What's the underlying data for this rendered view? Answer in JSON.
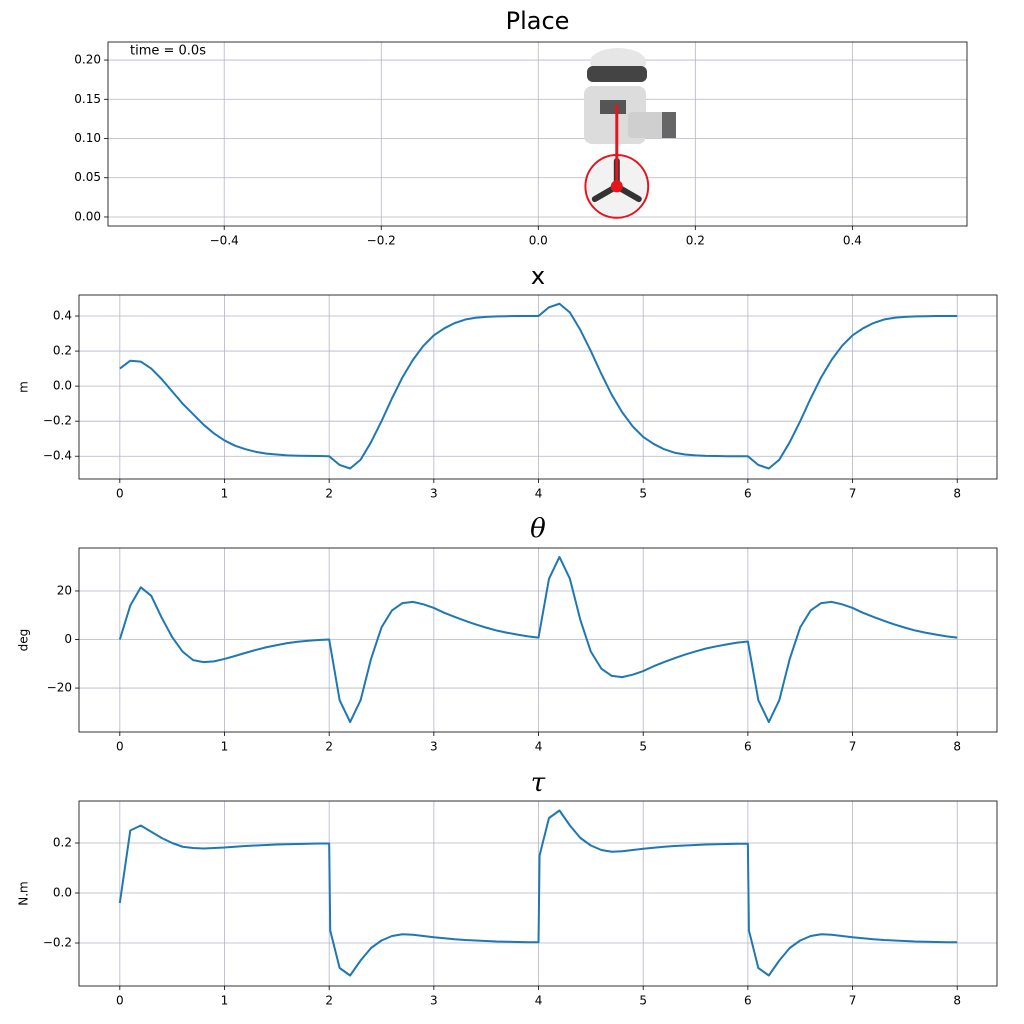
{
  "chart_data": [
    {
      "type": "scene",
      "title": "Place",
      "annotation": "time = 0.0s",
      "xlim": [
        -0.548,
        0.546
      ],
      "ylim": [
        -0.0115,
        0.223
      ],
      "xticks": [
        {
          "value": -0.4,
          "label": "−0.4"
        },
        {
          "value": -0.2,
          "label": "−0.2"
        },
        {
          "value": 0,
          "label": "0.0"
        },
        {
          "value": 0.2,
          "label": "0.2"
        },
        {
          "value": 0.4,
          "label": "0.4"
        }
      ],
      "yticks": [
        {
          "value": 0,
          "label": "0.00"
        },
        {
          "value": 0.05,
          "label": "0.05"
        },
        {
          "value": 0.1,
          "label": "0.10"
        },
        {
          "value": 0.15,
          "label": "0.15"
        },
        {
          "value": 0.2,
          "label": "0.20"
        }
      ],
      "grid": true,
      "color": "#e8141c",
      "wheel": {
        "x": 0.1,
        "y": 0.039,
        "radius": 0.04
      },
      "pole_top": {
        "x": 0.1,
        "y": 0.143
      }
    },
    {
      "type": "line",
      "title": "x",
      "ylabel": "m",
      "xlim": [
        -0.39,
        8.38
      ],
      "ylim": [
        -0.53,
        0.52
      ],
      "xticks": [
        0,
        1,
        2,
        3,
        4,
        5,
        6,
        7,
        8
      ],
      "yticks": [
        {
          "value": -0.4,
          "label": "−0.4"
        },
        {
          "value": -0.2,
          "label": "−0.2"
        },
        {
          "value": 0,
          "label": "0.0"
        },
        {
          "value": 0.2,
          "label": "0.2"
        },
        {
          "value": 0.4,
          "label": "0.4"
        }
      ],
      "grid": true,
      "x": [
        0,
        0.1,
        0.2,
        0.3,
        0.4,
        0.5,
        0.6,
        0.7,
        0.8,
        0.9,
        1.0,
        1.1,
        1.2,
        1.3,
        1.4,
        1.5,
        1.6,
        1.7,
        1.8,
        1.9,
        2.0,
        2.1,
        2.2,
        2.3,
        2.4,
        2.5,
        2.6,
        2.7,
        2.8,
        2.9,
        3.0,
        3.1,
        3.2,
        3.3,
        3.4,
        3.5,
        3.6,
        3.7,
        3.8,
        3.9,
        4.0,
        4.1,
        4.2,
        4.3,
        4.4,
        4.5,
        4.6,
        4.7,
        4.8,
        4.9,
        5.0,
        5.1,
        5.2,
        5.3,
        5.4,
        5.5,
        5.6,
        5.7,
        5.8,
        5.9,
        6.0,
        6.1,
        6.2,
        6.3,
        6.4,
        6.5,
        6.6,
        6.7,
        6.8,
        6.9,
        7.0,
        7.1,
        7.2,
        7.3,
        7.4,
        7.5,
        7.6,
        7.7,
        7.8,
        7.9,
        8.0
      ],
      "series": [
        {
          "color": "#1f77b4",
          "values": [
            0.1,
            0.145,
            0.14,
            0.1,
            0.04,
            -0.03,
            -0.1,
            -0.16,
            -0.22,
            -0.27,
            -0.31,
            -0.34,
            -0.36,
            -0.375,
            -0.385,
            -0.39,
            -0.395,
            -0.397,
            -0.398,
            -0.399,
            -0.4,
            -0.45,
            -0.47,
            -0.42,
            -0.32,
            -0.2,
            -0.07,
            0.05,
            0.15,
            0.23,
            0.29,
            0.33,
            0.36,
            0.38,
            0.39,
            0.395,
            0.398,
            0.399,
            0.4,
            0.4,
            0.4,
            0.45,
            0.47,
            0.42,
            0.32,
            0.2,
            0.07,
            -0.05,
            -0.15,
            -0.23,
            -0.29,
            -0.33,
            -0.36,
            -0.38,
            -0.39,
            -0.395,
            -0.398,
            -0.399,
            -0.4,
            -0.4,
            -0.4,
            -0.45,
            -0.47,
            -0.42,
            -0.32,
            -0.2,
            -0.07,
            0.05,
            0.15,
            0.23,
            0.29,
            0.33,
            0.36,
            0.38,
            0.39,
            0.395,
            0.398,
            0.399,
            0.4,
            0.4,
            0.4
          ]
        }
      ]
    },
    {
      "type": "line",
      "title": "θ",
      "ylabel": "deg",
      "xlim": [
        -0.39,
        8.38
      ],
      "ylim": [
        -38.1,
        37.7
      ],
      "xticks": [
        0,
        1,
        2,
        3,
        4,
        5,
        6,
        7,
        8
      ],
      "yticks": [
        {
          "value": -20,
          "label": "−20"
        },
        0,
        20
      ],
      "grid": true,
      "x": [
        0,
        0.1,
        0.2,
        0.3,
        0.4,
        0.5,
        0.6,
        0.7,
        0.8,
        0.9,
        1.0,
        1.1,
        1.2,
        1.3,
        1.4,
        1.5,
        1.6,
        1.7,
        1.8,
        1.9,
        2.0,
        2.1,
        2.2,
        2.3,
        2.4,
        2.5,
        2.6,
        2.7,
        2.8,
        2.9,
        3.0,
        3.1,
        3.2,
        3.3,
        3.4,
        3.5,
        3.6,
        3.7,
        3.8,
        3.9,
        4.0,
        4.1,
        4.2,
        4.3,
        4.4,
        4.5,
        4.6,
        4.7,
        4.8,
        4.9,
        5.0,
        5.1,
        5.2,
        5.3,
        5.4,
        5.5,
        5.6,
        5.7,
        5.8,
        5.9,
        6.0,
        6.1,
        6.2,
        6.3,
        6.4,
        6.5,
        6.6,
        6.7,
        6.8,
        6.9,
        7.0,
        7.1,
        7.2,
        7.3,
        7.4,
        7.5,
        7.6,
        7.7,
        7.8,
        7.9,
        8.0
      ],
      "series": [
        {
          "color": "#1f77b4",
          "values": [
            0,
            14,
            21.5,
            18,
            9,
            1,
            -5,
            -8.5,
            -9.3,
            -9,
            -8,
            -6.8,
            -5.5,
            -4.3,
            -3.2,
            -2.3,
            -1.5,
            -0.9,
            -0.5,
            -0.2,
            0,
            -25,
            -34,
            -25,
            -8,
            5,
            12,
            15,
            15.5,
            14.5,
            13,
            11,
            9.3,
            7.7,
            6.2,
            4.9,
            3.7,
            2.8,
            2,
            1.3,
            0.8,
            25,
            34,
            25,
            8,
            -5,
            -12,
            -15,
            -15.5,
            -14.5,
            -13,
            -11,
            -9.3,
            -7.7,
            -6.2,
            -4.9,
            -3.7,
            -2.8,
            -2,
            -1.3,
            -0.8,
            -25,
            -34,
            -25,
            -8,
            5,
            12,
            15,
            15.5,
            14.5,
            13,
            11,
            9.3,
            7.7,
            6.2,
            4.9,
            3.7,
            2.8,
            2,
            1.3,
            0.8
          ]
        }
      ]
    },
    {
      "type": "line",
      "title": "τ",
      "ylabel": "N.m",
      "xlim": [
        -0.39,
        8.38
      ],
      "ylim": [
        -0.372,
        0.368
      ],
      "xticks": [
        0,
        1,
        2,
        3,
        4,
        5,
        6,
        7,
        8
      ],
      "yticks": [
        {
          "value": -0.2,
          "label": "−0.2"
        },
        {
          "value": 0,
          "label": "0.0"
        },
        0.2
      ],
      "grid": true,
      "x": [
        0,
        0.1,
        0.2,
        0.3,
        0.4,
        0.5,
        0.6,
        0.7,
        0.8,
        0.9,
        1.0,
        1.1,
        1.2,
        1.3,
        1.4,
        1.5,
        1.6,
        1.7,
        1.8,
        1.9,
        2.0,
        2.01,
        2.1,
        2.2,
        2.3,
        2.4,
        2.5,
        2.6,
        2.7,
        2.8,
        2.9,
        3.0,
        3.1,
        3.2,
        3.3,
        3.4,
        3.5,
        3.6,
        3.7,
        3.8,
        3.9,
        4.0,
        4.01,
        4.1,
        4.2,
        4.3,
        4.4,
        4.5,
        4.6,
        4.7,
        4.8,
        4.9,
        5.0,
        5.1,
        5.2,
        5.3,
        5.4,
        5.5,
        5.6,
        5.7,
        5.8,
        5.9,
        6.0,
        6.01,
        6.1,
        6.2,
        6.3,
        6.4,
        6.5,
        6.6,
        6.7,
        6.8,
        6.9,
        7.0,
        7.1,
        7.2,
        7.3,
        7.4,
        7.5,
        7.6,
        7.7,
        7.8,
        7.9,
        8.0
      ],
      "series": [
        {
          "color": "#1f77b4",
          "values": [
            -0.04,
            0.25,
            0.27,
            0.245,
            0.22,
            0.2,
            0.185,
            0.18,
            0.178,
            0.18,
            0.182,
            0.185,
            0.188,
            0.19,
            0.192,
            0.194,
            0.195,
            0.196,
            0.197,
            0.198,
            0.198,
            -0.15,
            -0.3,
            -0.33,
            -0.27,
            -0.22,
            -0.19,
            -0.172,
            -0.165,
            -0.167,
            -0.172,
            -0.177,
            -0.181,
            -0.185,
            -0.188,
            -0.19,
            -0.192,
            -0.194,
            -0.195,
            -0.196,
            -0.197,
            -0.197,
            0.15,
            0.3,
            0.33,
            0.27,
            0.22,
            0.19,
            0.172,
            0.165,
            0.167,
            0.172,
            0.177,
            0.181,
            0.185,
            0.188,
            0.19,
            0.192,
            0.194,
            0.195,
            0.196,
            0.197,
            0.197,
            -0.15,
            -0.3,
            -0.33,
            -0.27,
            -0.22,
            -0.19,
            -0.172,
            -0.165,
            -0.167,
            -0.172,
            -0.177,
            -0.181,
            -0.185,
            -0.188,
            -0.19,
            -0.192,
            -0.194,
            -0.195,
            -0.196,
            -0.197,
            -0.197
          ]
        }
      ]
    }
  ]
}
